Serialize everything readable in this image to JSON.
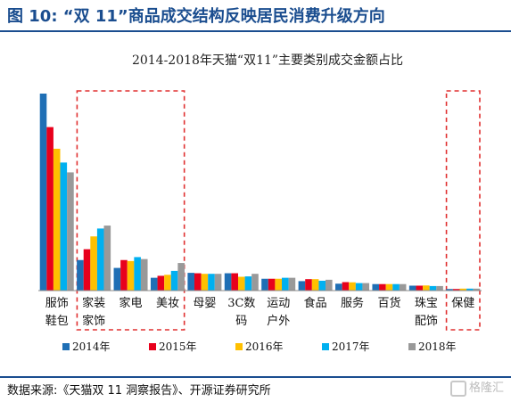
{
  "figure_title": "图 10:   “双 11”商品成交结构反映居民消费升级方向",
  "source": "数据来源:《天猫双 11 洞察报告》、开源证券研究所",
  "watermark": "格隆汇",
  "colors": {
    "accent": "#1a4d8f",
    "highlight_box": "#e03030",
    "series": [
      "#1f6fb5",
      "#e8001c",
      "#ffc000",
      "#00b0f0",
      "#999999"
    ]
  },
  "chart_data": {
    "type": "bar",
    "title": "2014-2018年天猫“双11”主要类别成交金额占比",
    "xlabel": "",
    "ylabel": "",
    "ylim": [
      0,
      100
    ],
    "grid": false,
    "legend_position": "bottom",
    "categories": [
      [
        "服饰",
        "鞋包"
      ],
      [
        "家装",
        "家饰"
      ],
      [
        "家电"
      ],
      [
        "美妆"
      ],
      [
        "母婴"
      ],
      [
        "3C数",
        "码"
      ],
      [
        "运动",
        "户外"
      ],
      [
        "食品"
      ],
      [
        "服务"
      ],
      [
        "百货"
      ],
      [
        "珠宝",
        "配饰"
      ],
      [
        "保健"
      ]
    ],
    "series": [
      {
        "name": "2014年",
        "values": [
          100,
          15.5,
          11.5,
          6.5,
          9.0,
          8.8,
          6.0,
          4.8,
          3.5,
          3.3,
          2.5,
          0.8
        ]
      },
      {
        "name": "2015年",
        "values": [
          83,
          21.0,
          15.5,
          7.5,
          8.8,
          8.8,
          6.0,
          5.8,
          4.3,
          3.3,
          2.5,
          0.8
        ]
      },
      {
        "name": "2016年",
        "values": [
          72,
          27.5,
          15.0,
          8.0,
          8.5,
          7.0,
          6.0,
          5.8,
          4.2,
          3.3,
          2.6,
          1.0
        ]
      },
      {
        "name": "2017年",
        "values": [
          65,
          31.5,
          17.0,
          10.0,
          8.5,
          7.2,
          6.5,
          5.0,
          3.8,
          3.3,
          2.3,
          1.0
        ]
      },
      {
        "name": "2018年",
        "values": [
          60,
          33.0,
          16.0,
          14.0,
          8.5,
          8.5,
          6.5,
          5.5,
          3.8,
          3.3,
          2.3,
          1.0
        ]
      }
    ],
    "highlight_groups": [
      [
        1,
        3
      ],
      [
        11,
        11
      ]
    ]
  }
}
